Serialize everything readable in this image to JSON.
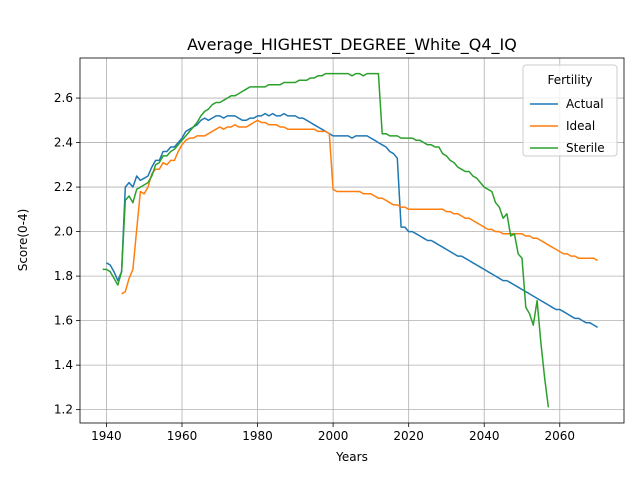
{
  "chart_data": {
    "type": "line",
    "title": "Average_HIGHEST_DEGREE_White_Q4_IQ",
    "xlabel": "Years",
    "ylabel": "Score(0-4)",
    "xlim": [
      1933,
      2077
    ],
    "ylim": [
      1.14,
      2.78
    ],
    "xticks": [
      1940,
      1960,
      1980,
      2000,
      2020,
      2040,
      2060
    ],
    "yticks": [
      1.2,
      1.4,
      1.6,
      1.8,
      2.0,
      2.2,
      2.4,
      2.6
    ],
    "grid": true,
    "legend": {
      "title": "Fertility",
      "placement": "top-right"
    },
    "series": [
      {
        "name": "Actual",
        "color": "#1f77b4",
        "x": [
          1940,
          1941,
          1942,
          1943,
          1944,
          1945,
          1946,
          1947,
          1948,
          1949,
          1950,
          1951,
          1952,
          1953,
          1954,
          1955,
          1956,
          1957,
          1958,
          1959,
          1960,
          1961,
          1962,
          1963,
          1964,
          1965,
          1966,
          1967,
          1968,
          1969,
          1970,
          1971,
          1972,
          1973,
          1974,
          1975,
          1976,
          1977,
          1978,
          1979,
          1980,
          1981,
          1982,
          1983,
          1984,
          1985,
          1986,
          1987,
          1988,
          1989,
          1990,
          1991,
          1992,
          1993,
          1994,
          1995,
          1996,
          1997,
          1998,
          1999,
          2000,
          2001,
          2002,
          2003,
          2004,
          2005,
          2006,
          2007,
          2008,
          2009,
          2010,
          2011,
          2012,
          2013,
          2014,
          2015,
          2016,
          2017,
          2018,
          2019,
          2020,
          2021,
          2022,
          2023,
          2024,
          2025,
          2026,
          2027,
          2028,
          2029,
          2030,
          2031,
          2032,
          2033,
          2034,
          2035,
          2036,
          2037,
          2038,
          2039,
          2040,
          2041,
          2042,
          2043,
          2044,
          2045,
          2046,
          2047,
          2048,
          2049,
          2050,
          2051,
          2052,
          2053,
          2054,
          2055,
          2056,
          2057,
          2058,
          2059,
          2060,
          2061,
          2062,
          2063,
          2064,
          2065,
          2066,
          2067,
          2068,
          2069,
          2070
        ],
        "y": [
          1.86,
          1.85,
          1.82,
          1.78,
          1.82,
          2.2,
          2.22,
          2.2,
          2.25,
          2.23,
          2.24,
          2.25,
          2.29,
          2.32,
          2.32,
          2.36,
          2.36,
          2.38,
          2.38,
          2.4,
          2.42,
          2.45,
          2.46,
          2.47,
          2.48,
          2.5,
          2.51,
          2.5,
          2.51,
          2.52,
          2.52,
          2.51,
          2.52,
          2.52,
          2.52,
          2.51,
          2.5,
          2.5,
          2.51,
          2.51,
          2.52,
          2.52,
          2.53,
          2.52,
          2.53,
          2.52,
          2.52,
          2.53,
          2.52,
          2.52,
          2.52,
          2.51,
          2.51,
          2.5,
          2.49,
          2.48,
          2.47,
          2.46,
          2.45,
          2.44,
          2.43,
          2.43,
          2.43,
          2.43,
          2.43,
          2.42,
          2.43,
          2.43,
          2.43,
          2.43,
          2.42,
          2.41,
          2.4,
          2.39,
          2.38,
          2.36,
          2.35,
          2.33,
          2.02,
          2.02,
          2.0,
          2.0,
          1.99,
          1.98,
          1.97,
          1.96,
          1.96,
          1.95,
          1.94,
          1.93,
          1.92,
          1.91,
          1.9,
          1.89,
          1.89,
          1.88,
          1.87,
          1.86,
          1.85,
          1.84,
          1.83,
          1.82,
          1.81,
          1.8,
          1.79,
          1.78,
          1.78,
          1.77,
          1.76,
          1.75,
          1.74,
          1.73,
          1.72,
          1.71,
          1.7,
          1.69,
          1.68,
          1.67,
          1.66,
          1.65,
          1.65,
          1.64,
          1.63,
          1.62,
          1.61,
          1.61,
          1.6,
          1.59,
          1.59,
          1.58,
          1.57
        ]
      },
      {
        "name": "Ideal",
        "color": "#ff7f0e",
        "x": [
          1944,
          1945,
          1946,
          1947,
          1948,
          1949,
          1950,
          1951,
          1952,
          1953,
          1954,
          1955,
          1956,
          1957,
          1958,
          1959,
          1960,
          1961,
          1962,
          1963,
          1964,
          1965,
          1966,
          1967,
          1968,
          1969,
          1970,
          1971,
          1972,
          1973,
          1974,
          1975,
          1976,
          1977,
          1978,
          1979,
          1980,
          1981,
          1982,
          1983,
          1984,
          1985,
          1986,
          1987,
          1988,
          1989,
          1990,
          1991,
          1992,
          1993,
          1994,
          1995,
          1996,
          1997,
          1998,
          1999,
          2000,
          2001,
          2002,
          2003,
          2004,
          2005,
          2006,
          2007,
          2008,
          2009,
          2010,
          2011,
          2012,
          2013,
          2014,
          2015,
          2016,
          2017,
          2018,
          2019,
          2020,
          2021,
          2022,
          2023,
          2024,
          2025,
          2026,
          2027,
          2028,
          2029,
          2030,
          2031,
          2032,
          2033,
          2034,
          2035,
          2036,
          2037,
          2038,
          2039,
          2040,
          2041,
          2042,
          2043,
          2044,
          2045,
          2046,
          2047,
          2048,
          2049,
          2050,
          2051,
          2052,
          2053,
          2054,
          2055,
          2056,
          2057,
          2058,
          2059,
          2060,
          2061,
          2062,
          2063,
          2064,
          2065,
          2066,
          2067,
          2068,
          2069,
          2070
        ],
        "y": [
          1.72,
          1.73,
          1.79,
          1.83,
          2.01,
          2.18,
          2.17,
          2.2,
          2.26,
          2.28,
          2.28,
          2.31,
          2.3,
          2.32,
          2.32,
          2.36,
          2.39,
          2.41,
          2.42,
          2.42,
          2.43,
          2.43,
          2.43,
          2.44,
          2.45,
          2.46,
          2.47,
          2.46,
          2.47,
          2.47,
          2.48,
          2.47,
          2.47,
          2.47,
          2.48,
          2.49,
          2.5,
          2.49,
          2.49,
          2.48,
          2.48,
          2.48,
          2.47,
          2.47,
          2.46,
          2.46,
          2.46,
          2.46,
          2.46,
          2.46,
          2.46,
          2.46,
          2.45,
          2.45,
          2.45,
          2.44,
          2.19,
          2.18,
          2.18,
          2.18,
          2.18,
          2.18,
          2.18,
          2.18,
          2.17,
          2.17,
          2.17,
          2.16,
          2.15,
          2.15,
          2.14,
          2.13,
          2.12,
          2.12,
          2.11,
          2.11,
          2.1,
          2.1,
          2.1,
          2.1,
          2.1,
          2.1,
          2.1,
          2.1,
          2.1,
          2.1,
          2.09,
          2.09,
          2.08,
          2.08,
          2.07,
          2.06,
          2.06,
          2.05,
          2.04,
          2.03,
          2.02,
          2.01,
          2.01,
          2.0,
          2.0,
          1.99,
          1.99,
          1.99,
          1.99,
          1.99,
          1.99,
          1.98,
          1.98,
          1.97,
          1.97,
          1.96,
          1.95,
          1.94,
          1.93,
          1.92,
          1.91,
          1.9,
          1.9,
          1.89,
          1.89,
          1.88,
          1.88,
          1.88,
          1.88,
          1.88,
          1.87
        ]
      },
      {
        "name": "Sterile",
        "color": "#2ca02c",
        "x": [
          1939,
          1940,
          1941,
          1942,
          1943,
          1944,
          1945,
          1946,
          1947,
          1948,
          1949,
          1950,
          1951,
          1952,
          1953,
          1954,
          1955,
          1956,
          1957,
          1958,
          1959,
          1960,
          1961,
          1962,
          1963,
          1964,
          1965,
          1966,
          1967,
          1968,
          1969,
          1970,
          1971,
          1972,
          1973,
          1974,
          1975,
          1976,
          1977,
          1978,
          1979,
          1980,
          1981,
          1982,
          1983,
          1984,
          1985,
          1986,
          1987,
          1988,
          1989,
          1990,
          1991,
          1992,
          1993,
          1994,
          1995,
          1996,
          1997,
          1998,
          1999,
          2000,
          2001,
          2002,
          2003,
          2004,
          2005,
          2006,
          2007,
          2008,
          2009,
          2010,
          2011,
          2012,
          2013,
          2014,
          2015,
          2016,
          2017,
          2018,
          2019,
          2020,
          2021,
          2022,
          2023,
          2024,
          2025,
          2026,
          2027,
          2028,
          2029,
          2030,
          2031,
          2032,
          2033,
          2034,
          2035,
          2036,
          2037,
          2038,
          2039,
          2040,
          2041,
          2042,
          2043,
          2044,
          2045,
          2046,
          2047,
          2048,
          2049,
          2050,
          2051,
          2052,
          2053,
          2054,
          2055,
          2056,
          2057
        ],
        "y": [
          1.83,
          1.83,
          1.82,
          1.79,
          1.76,
          1.82,
          2.14,
          2.16,
          2.13,
          2.19,
          2.2,
          2.21,
          2.22,
          2.25,
          2.3,
          2.31,
          2.34,
          2.34,
          2.36,
          2.37,
          2.39,
          2.41,
          2.43,
          2.45,
          2.47,
          2.49,
          2.52,
          2.54,
          2.55,
          2.57,
          2.58,
          2.58,
          2.59,
          2.6,
          2.61,
          2.61,
          2.62,
          2.63,
          2.64,
          2.65,
          2.65,
          2.65,
          2.65,
          2.65,
          2.66,
          2.66,
          2.66,
          2.66,
          2.67,
          2.67,
          2.67,
          2.67,
          2.68,
          2.68,
          2.68,
          2.69,
          2.69,
          2.7,
          2.7,
          2.71,
          2.71,
          2.71,
          2.71,
          2.71,
          2.71,
          2.71,
          2.7,
          2.71,
          2.71,
          2.7,
          2.71,
          2.71,
          2.71,
          2.71,
          2.44,
          2.44,
          2.43,
          2.43,
          2.43,
          2.42,
          2.42,
          2.42,
          2.42,
          2.41,
          2.41,
          2.4,
          2.39,
          2.39,
          2.38,
          2.38,
          2.35,
          2.34,
          2.32,
          2.31,
          2.29,
          2.28,
          2.27,
          2.27,
          2.25,
          2.24,
          2.22,
          2.2,
          2.19,
          2.18,
          2.13,
          2.11,
          2.06,
          2.08,
          1.98,
          1.99,
          1.9,
          1.88,
          1.66,
          1.63,
          1.58,
          1.69,
          1.5,
          1.34,
          1.21
        ]
      }
    ]
  }
}
